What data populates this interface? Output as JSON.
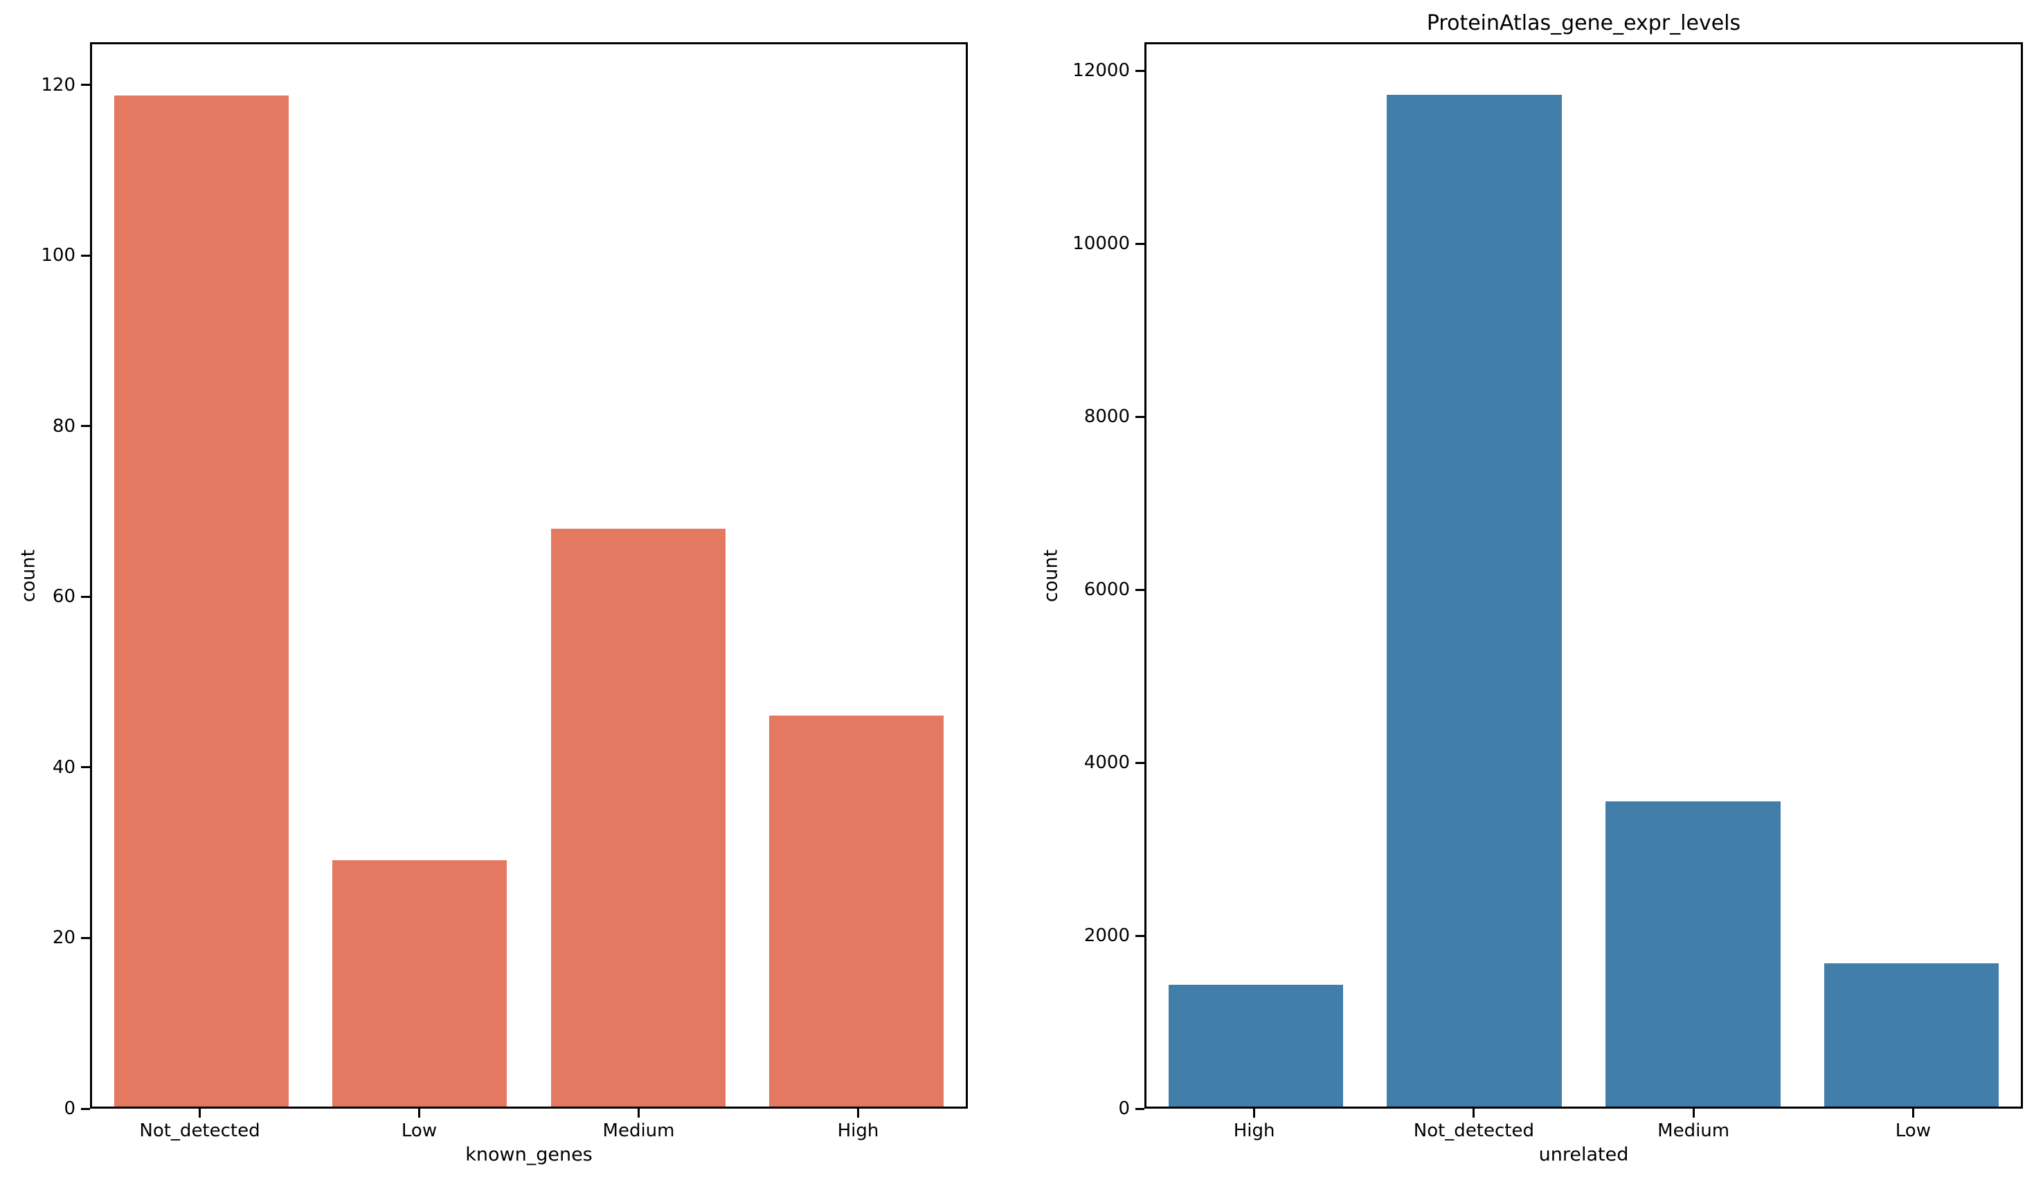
{
  "figure": {
    "background": "#ffffff",
    "spine_color": "#000000",
    "tick_color": "#000000",
    "text_color": "#000000"
  },
  "chart_data": [
    {
      "type": "bar",
      "panel": "left",
      "title": "",
      "categories": [
        "Not_detected",
        "Low",
        "Medium",
        "High"
      ],
      "values": [
        119,
        29,
        68,
        46
      ],
      "xlabel": "known_genes",
      "ylabel": "count",
      "ylim": [
        0,
        125
      ],
      "yticks": [
        0,
        20,
        40,
        60,
        80,
        100,
        120
      ],
      "bar_color": "#e47861",
      "bar_width_fraction": 0.8,
      "grid": false,
      "legend": "none"
    },
    {
      "type": "bar",
      "panel": "right",
      "title": "ProteinAtlas_gene_expr_levels",
      "categories": [
        "High",
        "Not_detected",
        "Medium",
        "Low"
      ],
      "values": [
        1410,
        11740,
        3540,
        1660
      ],
      "xlabel": "unrelated",
      "ylabel": "count",
      "ylim": [
        0,
        12330
      ],
      "yticks": [
        0,
        2000,
        4000,
        6000,
        8000,
        10000,
        12000
      ],
      "bar_color": "#427eaa",
      "bar_width_fraction": 0.8,
      "grid": false,
      "legend": "none"
    }
  ]
}
